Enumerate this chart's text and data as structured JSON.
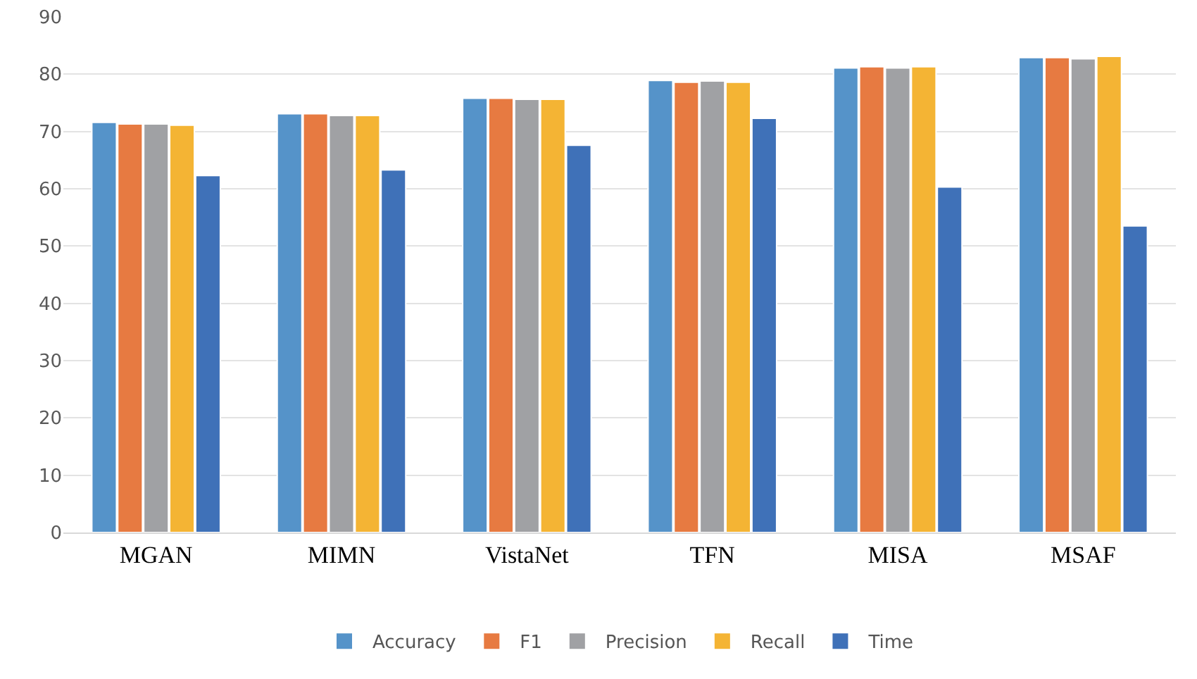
{
  "chart_data": {
    "type": "bar",
    "categories": [
      "MGAN",
      "MIMN",
      "VistaNet",
      "TFN",
      "MISA",
      "MSAF"
    ],
    "series": [
      {
        "name": "Accuracy",
        "color": "#5593c9",
        "values": [
          71.6,
          73.1,
          75.8,
          78.9,
          81.1,
          82.9
        ]
      },
      {
        "name": "F1",
        "color": "#e77a41",
        "values": [
          71.3,
          73.1,
          75.8,
          78.6,
          81.3,
          82.9
        ]
      },
      {
        "name": "Precision",
        "color": "#a0a1a4",
        "values": [
          71.3,
          72.8,
          75.6,
          78.8,
          81.1,
          82.7
        ]
      },
      {
        "name": "Recall",
        "color": "#f4b434",
        "values": [
          71.1,
          72.8,
          75.6,
          78.6,
          81.3,
          83.1
        ]
      },
      {
        "name": "Time",
        "color": "#3f71b8",
        "values": [
          62.3,
          63.3,
          67.6,
          72.3,
          60.3,
          53.5
        ]
      }
    ],
    "ylim": [
      0,
      90
    ],
    "yticks": [
      0,
      10,
      20,
      30,
      40,
      50,
      60,
      70,
      80,
      90
    ],
    "grid": "y",
    "legend": "bottom"
  }
}
